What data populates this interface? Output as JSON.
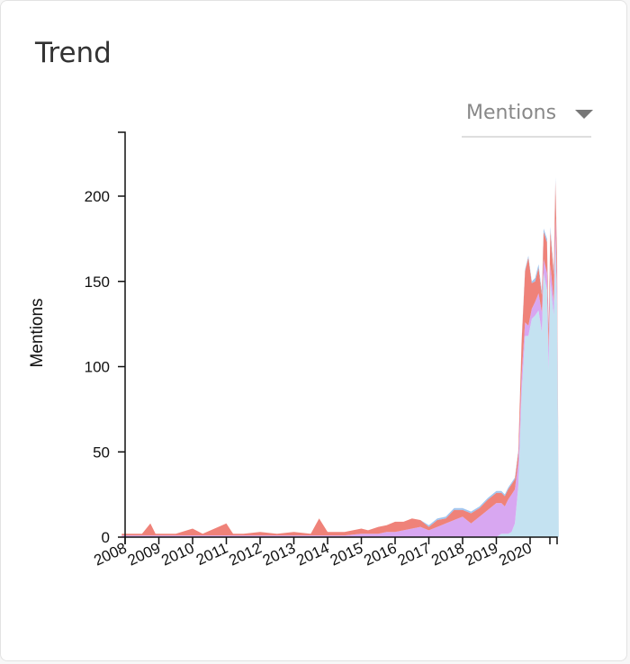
{
  "card": {
    "title": "Trend"
  },
  "metric_select": {
    "selected": "Mentions",
    "icon": "caret-down-icon"
  },
  "colors": {
    "series_light_blue": "#c4e2f1",
    "series_lavender": "#d8a7f1",
    "series_coral": "#ef8279",
    "series_blue_edge": "#9ec4ef"
  },
  "chart_data": {
    "type": "area",
    "stacked": true,
    "ylabel": "Mentions",
    "xlabel": "",
    "ylim": [
      0,
      240
    ],
    "yticks": [
      0,
      50,
      100,
      150,
      200
    ],
    "xticks": [
      "2008",
      "2009",
      "2010",
      "2011",
      "2012",
      "2013",
      "2014",
      "2015",
      "2016",
      "2017",
      "2018",
      "2019",
      "2020"
    ],
    "x": [
      2007.9,
      2008.5,
      2008.75,
      2008.9,
      2009.5,
      2010.0,
      2010.3,
      2011.0,
      2011.2,
      2011.5,
      2012.0,
      2012.5,
      2013.0,
      2013.5,
      2013.75,
      2014.0,
      2014.5,
      2015.0,
      2015.2,
      2015.5,
      2015.75,
      2016.0,
      2016.25,
      2016.5,
      2016.75,
      2017.0,
      2017.25,
      2017.5,
      2017.75,
      2018.0,
      2018.25,
      2018.5,
      2018.75,
      2019.0,
      2019.15,
      2019.25,
      2019.35,
      2019.45,
      2019.55,
      2019.65,
      2019.75,
      2019.85,
      2019.95,
      2020.05,
      2020.15,
      2020.25,
      2020.35,
      2020.4,
      2020.5,
      2020.55,
      2020.6,
      2020.7,
      2020.75,
      2020.8,
      2020.85
    ],
    "series": [
      {
        "values": [
          0,
          0,
          0,
          0,
          0,
          0,
          0,
          0,
          0,
          0,
          0,
          0,
          0,
          0,
          0,
          0,
          0,
          0,
          0,
          0,
          0,
          0,
          0,
          0,
          0,
          0,
          0,
          0,
          0,
          0,
          0,
          0,
          0,
          0,
          2,
          2,
          2,
          3,
          8,
          30,
          85,
          118,
          118,
          128,
          130,
          133,
          120,
          155,
          145,
          98,
          150,
          130,
          175,
          135,
          0
        ]
      },
      {
        "values": [
          1,
          1,
          1,
          1,
          1,
          1,
          1,
          1,
          1,
          1,
          1,
          1,
          1,
          1,
          1,
          1,
          1,
          2,
          2,
          2,
          3,
          3,
          4,
          5,
          6,
          4,
          6,
          8,
          10,
          12,
          8,
          12,
          16,
          20,
          18,
          16,
          20,
          22,
          20,
          14,
          10,
          8,
          6,
          6,
          8,
          10,
          12,
          8,
          10,
          12,
          10,
          8,
          12,
          10,
          0
        ]
      },
      {
        "values": [
          1,
          1,
          7,
          1,
          1,
          4,
          1,
          7,
          1,
          1,
          2,
          1,
          2,
          1,
          10,
          2,
          2,
          3,
          2,
          4,
          4,
          6,
          5,
          6,
          4,
          2,
          4,
          3,
          6,
          4,
          6,
          5,
          6,
          6,
          6,
          6,
          6,
          6,
          6,
          6,
          20,
          30,
          40,
          15,
          12,
          15,
          10,
          16,
          18,
          12,
          20,
          16,
          22,
          18,
          0
        ]
      },
      {
        "values": [
          0,
          0,
          0,
          0,
          0,
          0,
          0,
          0,
          0,
          0,
          0,
          0,
          0,
          0,
          0,
          0,
          0,
          0,
          0,
          0,
          0,
          0,
          0,
          0,
          0,
          1,
          1,
          1,
          1,
          1,
          1,
          1,
          1,
          1,
          1,
          1,
          1,
          1,
          1,
          1,
          1,
          1,
          1,
          1,
          2,
          2,
          2,
          2,
          2,
          2,
          2,
          2,
          2,
          2,
          0
        ]
      }
    ]
  }
}
